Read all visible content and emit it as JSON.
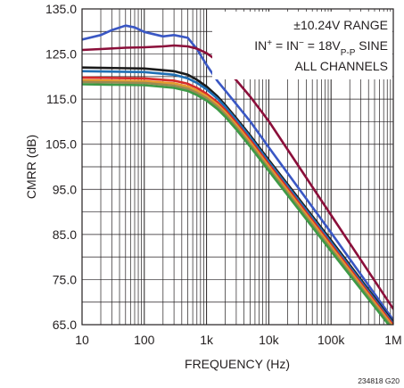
{
  "chart_data": {
    "type": "line",
    "xlabel": "FREQUENCY (Hz)",
    "ylabel": "CMRR (dB)",
    "x_scale": "log",
    "xlim": [
      10,
      1000000
    ],
    "ylim": [
      65,
      135
    ],
    "x_ticks": [
      10,
      100,
      1000,
      10000,
      100000,
      1000000
    ],
    "x_tick_labels": [
      "10",
      "100",
      "1k",
      "10k",
      "100k",
      "1M"
    ],
    "y_ticks": [
      65,
      75,
      85,
      95,
      105,
      115,
      125,
      135
    ],
    "y_tick_labels": [
      "65.0",
      "75.0",
      "85.0",
      "95.0",
      "105.0",
      "115.0",
      "125.0",
      "135.0"
    ],
    "grid": true,
    "annotations": [
      {
        "segments": [
          {
            "text": "±10.24V RANGE"
          }
        ]
      },
      {
        "segments": [
          {
            "text": "IN"
          },
          {
            "text": "+",
            "sup": true
          },
          {
            "text": " = IN"
          },
          {
            "text": "−",
            "sup": true
          },
          {
            "text": " = 18V"
          },
          {
            "text": "P-P",
            "sub": true
          },
          {
            "text": "  SINE"
          }
        ]
      },
      {
        "segments": [
          {
            "text": "ALL CHANNELS"
          }
        ]
      }
    ],
    "figure_id": "234818 G20",
    "series": [
      {
        "color": "#3a57c4",
        "x": [
          10,
          20,
          30,
          50,
          70,
          100,
          200,
          300,
          500,
          700,
          1000,
          1500,
          2000,
          3000,
          5000,
          10000,
          100000,
          1000000
        ],
        "y": [
          128.2,
          129.2,
          130.3,
          131.3,
          130.9,
          129.9,
          128.9,
          129.2,
          128.6,
          126.1,
          122.6,
          119.0,
          116.9,
          113.9,
          110.1,
          104.3,
          85.4,
          66.0
        ]
      },
      {
        "color": "#8b0f3a",
        "x": [
          10,
          20,
          50,
          100,
          200,
          300,
          500,
          700,
          1000,
          1500,
          2000,
          3000,
          5000,
          10000,
          100000,
          1000000
        ],
        "y": [
          125.9,
          126.1,
          126.4,
          126.5,
          126.7,
          126.9,
          126.7,
          126.2,
          125.2,
          123.5,
          121.9,
          119.2,
          115.6,
          110.1,
          89.3,
          68.5
        ]
      },
      {
        "color": "#1b1b1b",
        "x": [
          10,
          100,
          300,
          500,
          700,
          1000,
          1500,
          2000,
          3000,
          5000,
          10000,
          100000,
          1000000
        ],
        "y": [
          122.0,
          121.8,
          121.2,
          120.4,
          119.3,
          117.8,
          115.6,
          113.7,
          110.8,
          107.0,
          101.5,
          83.7,
          65.5
        ]
      },
      {
        "color": "#1f6fb5",
        "x": [
          10,
          100,
          300,
          500,
          700,
          1000,
          1500,
          2000,
          3000,
          5000,
          10000,
          100000,
          1000000
        ],
        "y": [
          121.2,
          121.0,
          120.4,
          119.6,
          118.6,
          117.2,
          115.1,
          113.3,
          110.4,
          106.6,
          101.1,
          83.3,
          65.2
        ]
      },
      {
        "color": "#d62a2a",
        "x": [
          10,
          100,
          300,
          500,
          700,
          1000,
          1500,
          2000,
          3000,
          5000,
          10000,
          100000,
          1000000
        ],
        "y": [
          119.8,
          119.6,
          119.1,
          118.4,
          117.5,
          116.2,
          114.3,
          112.6,
          109.8,
          106.0,
          100.6,
          82.8,
          64.9
        ]
      },
      {
        "color": "#e69a2e",
        "x": [
          10,
          100,
          300,
          500,
          700,
          1000,
          1500,
          2000,
          3000,
          5000,
          10000,
          100000,
          1000000
        ],
        "y": [
          119.2,
          119.0,
          118.5,
          117.8,
          116.9,
          115.7,
          113.8,
          112.1,
          109.3,
          105.5,
          100.1,
          82.3,
          64.5
        ]
      },
      {
        "color": "#9a8a52",
        "x": [
          10,
          100,
          300,
          500,
          700,
          1000,
          1500,
          2000,
          3000,
          5000,
          10000,
          100000,
          1000000
        ],
        "y": [
          118.8,
          118.6,
          118.0,
          117.3,
          116.4,
          115.2,
          113.3,
          111.6,
          108.8,
          105.0,
          99.6,
          81.8,
          64.1
        ]
      },
      {
        "color": "#3d9a46",
        "x": [
          10,
          100,
          300,
          500,
          700,
          1000,
          1500,
          2000,
          3000,
          5000,
          10000,
          100000,
          1000000
        ],
        "y": [
          118.3,
          118.1,
          117.5,
          116.8,
          115.9,
          114.7,
          112.8,
          111.1,
          108.3,
          104.5,
          99.1,
          81.3,
          63.7
        ]
      }
    ]
  }
}
